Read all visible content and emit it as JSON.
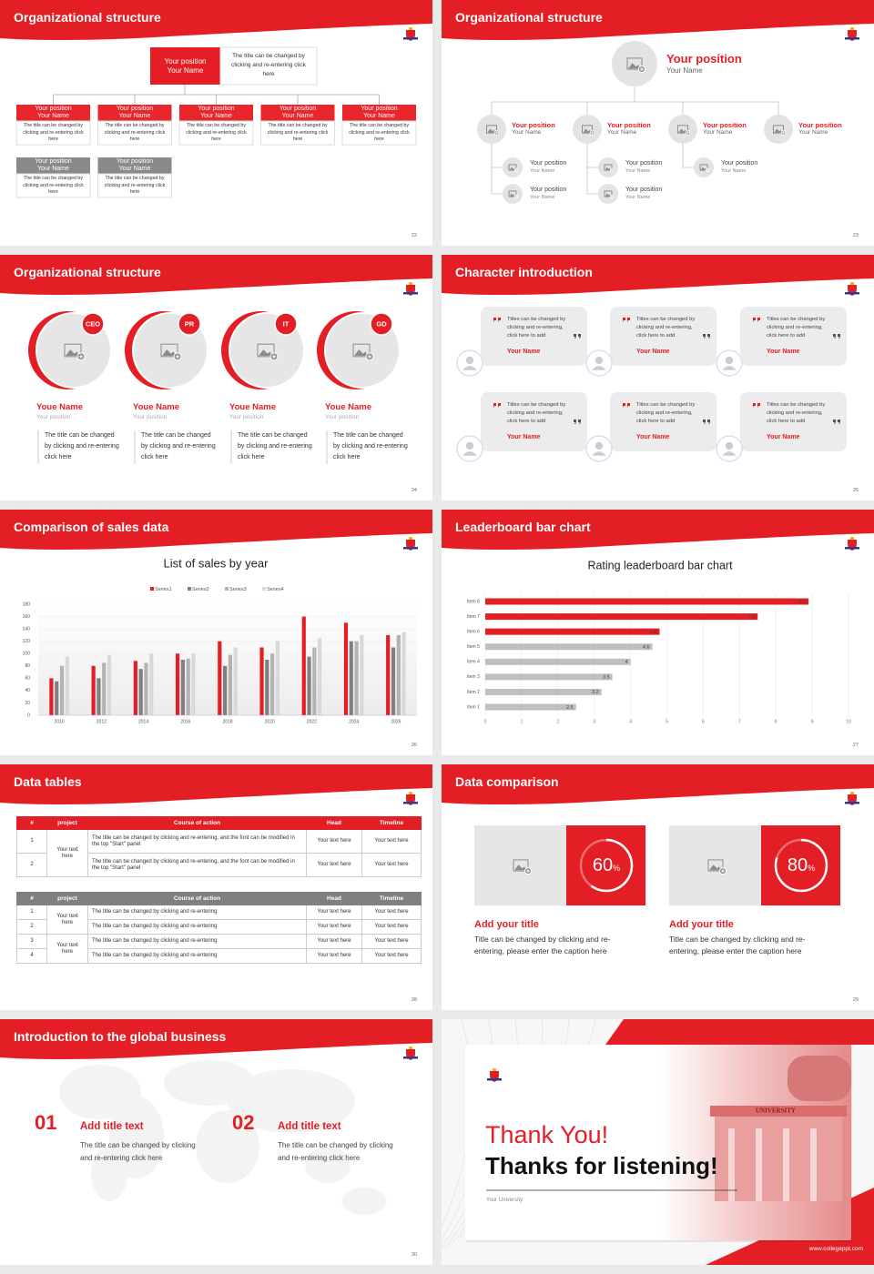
{
  "slides": [
    {
      "title": "Organizational structure",
      "page": "22",
      "top": {
        "position": "Your position",
        "name": "Your Name",
        "text": "The title can be changed by clicking and re-entering click here"
      },
      "red_boxes": [
        {
          "position": "Your position",
          "name": "Your Name",
          "text": "The title can be changed by clicking and re-entering click here"
        },
        {
          "position": "Your position",
          "name": "Your Name",
          "text": "The title can be changed by clicking and re-entering click here"
        },
        {
          "position": "Your position",
          "name": "Your Name",
          "text": "The title can be changed by clicking and re-entering click here"
        },
        {
          "position": "Your position",
          "name": "Your Name",
          "text": "The title can be changed by clicking and re-entering click here"
        },
        {
          "position": "Your position",
          "name": "Your Name",
          "text": "The title can be changed by clicking and re-entering click here"
        }
      ],
      "gray_boxes": [
        {
          "position": "Your position",
          "name": "Your Name",
          "text": "The title can be changed by clicking and re-entering click here"
        },
        {
          "position": "Your position",
          "name": "Your Name",
          "text": "The title can be changed by clicking and re-entering click here"
        }
      ]
    },
    {
      "title": "Organizational structure",
      "page": "23",
      "top": {
        "position": "Your position",
        "name": "Your Name"
      },
      "level2": [
        {
          "position": "Your position",
          "name": "Your Name"
        },
        {
          "position": "Your position",
          "name": "Your Name"
        },
        {
          "position": "Your position",
          "name": "Your Name"
        },
        {
          "position": "Your position",
          "name": "Your Name"
        }
      ],
      "level3": [
        {
          "position": "Your position",
          "name": "Your Name"
        },
        {
          "position": "Your position",
          "name": "Your Name"
        },
        {
          "position": "Your position",
          "name": "Your Name"
        },
        {
          "position": "Your position",
          "name": "Your Name"
        },
        {
          "position": "Your position",
          "name": "Your Name"
        }
      ]
    },
    {
      "title": "Organizational structure",
      "page": "24",
      "people": [
        {
          "badge": "CEO",
          "name": "Youe Name",
          "position": "Your position",
          "text": "The title can be changed by clicking and re-entering click here"
        },
        {
          "badge": "PR",
          "name": "Youe Name",
          "position": "Your position",
          "text": "The title can be changed by clicking and re-entering click here"
        },
        {
          "badge": "IT",
          "name": "Youe Name",
          "position": "Your position",
          "text": "The title can be changed by clicking and re-entering click here"
        },
        {
          "badge": "GD",
          "name": "Youe Name",
          "position": "Your position",
          "text": "The title can be changed by clicking and re-entering click here"
        }
      ]
    },
    {
      "title": "Character introduction",
      "page": "25",
      "cards": [
        {
          "text": "Titles can be changed by clicking and re-entering, click here to add",
          "name": "Your Name"
        },
        {
          "text": "Titles can be changed by clicking and re-entering, click here to add",
          "name": "Your Name"
        },
        {
          "text": "Titles can be changed by clicking and re-entering, click here to add",
          "name": "Your Name"
        },
        {
          "text": "Titles can be changed by clicking and re-entering, click here to add",
          "name": "Your Name"
        },
        {
          "text": "Titles can be changed by clicking and re-entering, click here to add",
          "name": "Your Name"
        },
        {
          "text": "Titles can be changed by clicking and re-entering, click here to add",
          "name": "Your Name"
        }
      ]
    },
    {
      "title": "Comparison of sales data",
      "page": "26"
    },
    {
      "title": "Leaderboard bar chart",
      "page": "27"
    },
    {
      "title": "Data tables",
      "page": "28",
      "table1": {
        "header": [
          "#",
          "project",
          "Course of action",
          "Head",
          "Timeline"
        ],
        "groups": [
          {
            "project": "Your text here",
            "rows": [
              [
                "1",
                "The title can be changed by clicking and re-entering, and the font can be modified in the top \"Start\" panel",
                "Your text here",
                "Your text here"
              ],
              [
                "2",
                "The title can be changed by clicking and re-entering, and the font can be modified in the top \"Start\" panel",
                "Your text here",
                "Your text here"
              ]
            ]
          }
        ]
      },
      "table2": {
        "header": [
          "#",
          "project",
          "Course of action",
          "Head",
          "Timeline"
        ],
        "groups": [
          {
            "project": "Your text here",
            "rows": [
              [
                "1",
                "The title can be changed by clicking and re-entering",
                "Your text here",
                "Your text here"
              ],
              [
                "2",
                "The title can be changed by clicking and re-entering",
                "Your text here",
                "Your text here"
              ]
            ]
          },
          {
            "project": "Your text here",
            "rows": [
              [
                "3",
                "The title can be changed by clicking and re-entering",
                "Your text here",
                "Your text here"
              ],
              [
                "4",
                "The title can be changed by clicking and re-entering",
                "Your text here",
                "Your text here"
              ]
            ]
          }
        ]
      }
    },
    {
      "title": "Data comparison",
      "page": "29",
      "items": [
        {
          "percent": 60,
          "unit": "%",
          "title": "Add your title",
          "text": "Title can be changed by clicking and re-entering, please enter the caption here"
        },
        {
          "percent": 80,
          "unit": "%",
          "title": "Add your title",
          "text": "Title can be changed by clicking and re-entering, please enter the caption here"
        }
      ]
    },
    {
      "title": "Introduction to the global business",
      "page": "30",
      "items": [
        {
          "number": "01",
          "title": "Add title text",
          "text": "The title can be changed by clicking and re-entering click here"
        },
        {
          "number": "02",
          "title": "Add title text",
          "text": "The title can be changed by clicking and re-entering click here"
        }
      ]
    },
    {
      "thanks": "Thank You!",
      "subtitle": "Thanks for listening!",
      "university": "Your University",
      "sign": "UNIVERSITY",
      "website": "www.collegeppt.com"
    }
  ],
  "chart_data": [
    {
      "type": "bar",
      "title": "List of sales by year",
      "categories": [
        "2010",
        "2012",
        "2014",
        "2016",
        "2018",
        "2020",
        "2022",
        "2024",
        "2026"
      ],
      "series": [
        {
          "name": "Series1",
          "color": "#e31e24",
          "values": [
            60,
            80,
            88,
            100,
            120,
            110,
            160,
            150,
            130
          ]
        },
        {
          "name": "Series2",
          "color": "#808080",
          "values": [
            55,
            60,
            75,
            90,
            80,
            90,
            95,
            120,
            110
          ]
        },
        {
          "name": "Series3",
          "color": "#b3b3b3",
          "values": [
            80,
            85,
            85,
            92,
            98,
            100,
            110,
            120,
            130
          ]
        },
        {
          "name": "Series4",
          "color": "#d9d9d9",
          "values": [
            95,
            98,
            100,
            100,
            110,
            120,
            125,
            130,
            135
          ]
        }
      ],
      "ylim": [
        0,
        180
      ],
      "yticks": [
        0,
        20,
        40,
        60,
        80,
        100,
        120,
        140,
        160,
        180
      ],
      "grid": true
    },
    {
      "type": "bar",
      "orientation": "horizontal",
      "title": "Rating leaderboard bar chart",
      "categories": [
        "Item 1",
        "Item 2",
        "Item 3",
        "Item 4",
        "Item 5",
        "Item 6",
        "Item 7",
        "Item 8"
      ],
      "values": [
        2.5,
        3.2,
        3.5,
        4,
        4.6,
        4.8,
        7.5,
        8.9
      ],
      "colors": [
        "#bfbfbf",
        "#bfbfbf",
        "#bfbfbf",
        "#bfbfbf",
        "#bfbfbf",
        "#e31e24",
        "#e31e24",
        "#e31e24"
      ],
      "xlim": [
        0,
        10
      ],
      "xticks": [
        0,
        1,
        2,
        3,
        4,
        5,
        6,
        7,
        8,
        9,
        10
      ],
      "grid": true
    }
  ]
}
